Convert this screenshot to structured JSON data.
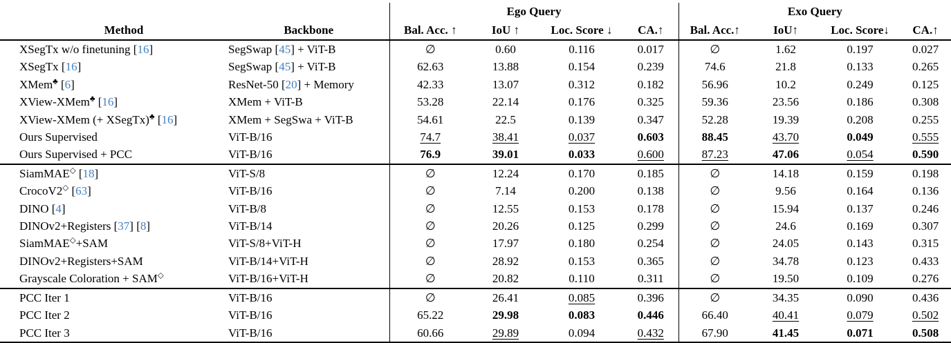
{
  "meta": {
    "background_color": "#ffffff",
    "text_color": "#000000",
    "citation_color": "#4181C2",
    "null_symbol": "∅"
  },
  "header": {
    "method": "Method",
    "backbone": "Backbone",
    "groups": [
      {
        "label": "Ego Query",
        "cols": [
          "Bal. Acc. ↑",
          "IoU ↑",
          "Loc. Score ↓",
          "CA.↑"
        ]
      },
      {
        "label": "Exo Query",
        "cols": [
          "Bal. Acc.↑",
          "IoU↑",
          "Loc. Score↓",
          "CA.↑"
        ]
      }
    ]
  },
  "sections": [
    {
      "name": "supervised-baselines",
      "rows": [
        {
          "method": [
            {
              "t": "XSegTx w/o finetuning "
            },
            {
              "t": "["
            },
            {
              "t": "16",
              "c": 1
            },
            {
              "t": "]"
            }
          ],
          "backbone": [
            {
              "t": "SegSwap "
            },
            {
              "t": "["
            },
            {
              "t": "45",
              "c": 1
            },
            {
              "t": "] + ViT-B"
            }
          ],
          "ego": [
            {
              "v": "∅"
            },
            {
              "v": "0.60"
            },
            {
              "v": "0.116"
            },
            {
              "v": "0.017"
            }
          ],
          "exo": [
            {
              "v": "∅"
            },
            {
              "v": "1.62"
            },
            {
              "v": "0.197"
            },
            {
              "v": "0.027"
            }
          ]
        },
        {
          "method": [
            {
              "t": "XSegTx "
            },
            {
              "t": "["
            },
            {
              "t": "16",
              "c": 1
            },
            {
              "t": "]"
            }
          ],
          "backbone": [
            {
              "t": "SegSwap "
            },
            {
              "t": "["
            },
            {
              "t": "45",
              "c": 1
            },
            {
              "t": "] + ViT-B"
            }
          ],
          "ego": [
            {
              "v": "62.63"
            },
            {
              "v": "13.88"
            },
            {
              "v": "0.154"
            },
            {
              "v": "0.239"
            }
          ],
          "exo": [
            {
              "v": "74.6"
            },
            {
              "v": "21.8"
            },
            {
              "v": "0.133"
            },
            {
              "v": "0.265"
            }
          ]
        },
        {
          "method": [
            {
              "t": "XMem"
            },
            {
              "t": "♣",
              "p": 1
            },
            {
              "t": " "
            },
            {
              "t": "["
            },
            {
              "t": "6",
              "c": 1
            },
            {
              "t": "]"
            }
          ],
          "backbone": [
            {
              "t": "ResNet-50 "
            },
            {
              "t": "["
            },
            {
              "t": "20",
              "c": 1
            },
            {
              "t": "] + Memory"
            }
          ],
          "ego": [
            {
              "v": "42.33"
            },
            {
              "v": "13.07"
            },
            {
              "v": "0.312"
            },
            {
              "v": "0.182"
            }
          ],
          "exo": [
            {
              "v": "56.96"
            },
            {
              "v": "10.2"
            },
            {
              "v": "0.249"
            },
            {
              "v": "0.125"
            }
          ]
        },
        {
          "method": [
            {
              "t": "XView-XMem"
            },
            {
              "t": "♣",
              "p": 1
            },
            {
              "t": " "
            },
            {
              "t": "["
            },
            {
              "t": "16",
              "c": 1
            },
            {
              "t": "]"
            }
          ],
          "backbone": [
            {
              "t": "XMem + ViT-B"
            }
          ],
          "ego": [
            {
              "v": "53.28"
            },
            {
              "v": "22.14"
            },
            {
              "v": "0.176"
            },
            {
              "v": "0.325"
            }
          ],
          "exo": [
            {
              "v": "59.36"
            },
            {
              "v": "23.56"
            },
            {
              "v": "0.186"
            },
            {
              "v": "0.308"
            }
          ]
        },
        {
          "method": [
            {
              "t": "XView-XMem (+ XSegTx)"
            },
            {
              "t": "♣",
              "p": 1
            },
            {
              "t": " "
            },
            {
              "t": "["
            },
            {
              "t": "16",
              "c": 1
            },
            {
              "t": "]"
            }
          ],
          "backbone": [
            {
              "t": "XMem + SegSwa + ViT-B"
            }
          ],
          "ego": [
            {
              "v": "54.61"
            },
            {
              "v": "22.5"
            },
            {
              "v": "0.139"
            },
            {
              "v": "0.347"
            }
          ],
          "exo": [
            {
              "v": "52.28"
            },
            {
              "v": "19.39"
            },
            {
              "v": "0.208"
            },
            {
              "v": "0.255"
            }
          ]
        },
        {
          "method": [
            {
              "t": "Ours Supervised"
            }
          ],
          "backbone": [
            {
              "t": "ViT-B/16"
            }
          ],
          "ego": [
            {
              "v": "74.7",
              "s": "u"
            },
            {
              "v": "38.41",
              "s": "u"
            },
            {
              "v": "0.037",
              "s": "u"
            },
            {
              "v": "0.603",
              "s": "b"
            }
          ],
          "exo": [
            {
              "v": "88.45",
              "s": "b"
            },
            {
              "v": "43.70",
              "s": "u"
            },
            {
              "v": "0.049",
              "s": "b"
            },
            {
              "v": "0.555",
              "s": "u"
            }
          ]
        },
        {
          "method": [
            {
              "t": "Ours Supervised + PCC"
            }
          ],
          "backbone": [
            {
              "t": "ViT-B/16"
            }
          ],
          "ego": [
            {
              "v": "76.9",
              "s": "b"
            },
            {
              "v": "39.01",
              "s": "b"
            },
            {
              "v": "0.033",
              "s": "b"
            },
            {
              "v": "0.600",
              "s": "u"
            }
          ],
          "exo": [
            {
              "v": "87.23",
              "s": "u"
            },
            {
              "v": "47.06",
              "s": "b"
            },
            {
              "v": "0.054",
              "s": "u"
            },
            {
              "v": "0.590",
              "s": "b"
            }
          ]
        }
      ]
    },
    {
      "name": "self-supervised-baselines",
      "rows": [
        {
          "method": [
            {
              "t": "SiamMAE"
            },
            {
              "t": "◇",
              "p": 1
            },
            {
              "t": " "
            },
            {
              "t": "["
            },
            {
              "t": "18",
              "c": 1
            },
            {
              "t": "]"
            }
          ],
          "backbone": [
            {
              "t": "ViT-S/8"
            }
          ],
          "ego": [
            {
              "v": "∅"
            },
            {
              "v": "12.24"
            },
            {
              "v": "0.170"
            },
            {
              "v": "0.185"
            }
          ],
          "exo": [
            {
              "v": "∅"
            },
            {
              "v": "14.18"
            },
            {
              "v": "0.159"
            },
            {
              "v": "0.198"
            }
          ]
        },
        {
          "method": [
            {
              "t": "CrocoV2"
            },
            {
              "t": "◇",
              "p": 1
            },
            {
              "t": " "
            },
            {
              "t": "["
            },
            {
              "t": "63",
              "c": 1
            },
            {
              "t": "]"
            }
          ],
          "backbone": [
            {
              "t": "ViT-B/16"
            }
          ],
          "ego": [
            {
              "v": "∅"
            },
            {
              "v": "7.14"
            },
            {
              "v": "0.200"
            },
            {
              "v": "0.138"
            }
          ],
          "exo": [
            {
              "v": "∅"
            },
            {
              "v": "9.56"
            },
            {
              "v": "0.164"
            },
            {
              "v": "0.136"
            }
          ]
        },
        {
          "method": [
            {
              "t": "DINO "
            },
            {
              "t": "["
            },
            {
              "t": "4",
              "c": 1
            },
            {
              "t": "]"
            }
          ],
          "backbone": [
            {
              "t": "ViT-B/8"
            }
          ],
          "ego": [
            {
              "v": "∅"
            },
            {
              "v": "12.55"
            },
            {
              "v": "0.153"
            },
            {
              "v": "0.178"
            }
          ],
          "exo": [
            {
              "v": "∅"
            },
            {
              "v": "15.94"
            },
            {
              "v": "0.137"
            },
            {
              "v": "0.246"
            }
          ]
        },
        {
          "method": [
            {
              "t": "DINOv2+Registers "
            },
            {
              "t": "["
            },
            {
              "t": "37",
              "c": 1
            },
            {
              "t": "] "
            },
            {
              "t": "["
            },
            {
              "t": "8",
              "c": 1
            },
            {
              "t": "]"
            }
          ],
          "backbone": [
            {
              "t": "ViT-B/14"
            }
          ],
          "ego": [
            {
              "v": "∅"
            },
            {
              "v": "20.26"
            },
            {
              "v": "0.125"
            },
            {
              "v": "0.299"
            }
          ],
          "exo": [
            {
              "v": "∅"
            },
            {
              "v": "24.6"
            },
            {
              "v": "0.169"
            },
            {
              "v": "0.307"
            }
          ]
        },
        {
          "method": [
            {
              "t": "SiamMAE"
            },
            {
              "t": "◇",
              "p": 1
            },
            {
              "t": "+SAM"
            }
          ],
          "backbone": [
            {
              "t": "ViT-S/8+ViT-H"
            }
          ],
          "ego": [
            {
              "v": "∅"
            },
            {
              "v": "17.97"
            },
            {
              "v": "0.180"
            },
            {
              "v": "0.254"
            }
          ],
          "exo": [
            {
              "v": "∅"
            },
            {
              "v": "24.05"
            },
            {
              "v": "0.143"
            },
            {
              "v": "0.315"
            }
          ]
        },
        {
          "method": [
            {
              "t": "DINOv2+Registers+SAM"
            }
          ],
          "backbone": [
            {
              "t": "ViT-B/14+ViT-H"
            }
          ],
          "ego": [
            {
              "v": "∅"
            },
            {
              "v": "28.92"
            },
            {
              "v": "0.153"
            },
            {
              "v": "0.365"
            }
          ],
          "exo": [
            {
              "v": "∅"
            },
            {
              "v": "34.78"
            },
            {
              "v": "0.123"
            },
            {
              "v": "0.433"
            }
          ]
        },
        {
          "method": [
            {
              "t": "Grayscale Coloration + SAM"
            },
            {
              "t": "◇",
              "p": 1
            }
          ],
          "backbone": [
            {
              "t": "ViT-B/16+ViT-H"
            }
          ],
          "ego": [
            {
              "v": "∅"
            },
            {
              "v": "20.82"
            },
            {
              "v": "0.110"
            },
            {
              "v": "0.311"
            }
          ],
          "exo": [
            {
              "v": "∅"
            },
            {
              "v": "19.50"
            },
            {
              "v": "0.109"
            },
            {
              "v": "0.276"
            }
          ]
        }
      ]
    },
    {
      "name": "pcc-iterations",
      "rows": [
        {
          "method": [
            {
              "t": "PCC Iter 1"
            }
          ],
          "backbone": [
            {
              "t": "ViT-B/16"
            }
          ],
          "ego": [
            {
              "v": "∅"
            },
            {
              "v": "26.41"
            },
            {
              "v": "0.085",
              "s": "u"
            },
            {
              "v": "0.396"
            }
          ],
          "exo": [
            {
              "v": "∅"
            },
            {
              "v": "34.35"
            },
            {
              "v": "0.090"
            },
            {
              "v": "0.436"
            }
          ]
        },
        {
          "method": [
            {
              "t": "PCC Iter 2"
            }
          ],
          "backbone": [
            {
              "t": "ViT-B/16"
            }
          ],
          "ego": [
            {
              "v": "65.22"
            },
            {
              "v": "29.98",
              "s": "b"
            },
            {
              "v": "0.083",
              "s": "b"
            },
            {
              "v": "0.446",
              "s": "b"
            }
          ],
          "exo": [
            {
              "v": "66.40"
            },
            {
              "v": "40.41",
              "s": "u"
            },
            {
              "v": "0.079",
              "s": "u"
            },
            {
              "v": "0.502",
              "s": "u"
            }
          ]
        },
        {
          "method": [
            {
              "t": "PCC Iter 3"
            }
          ],
          "backbone": [
            {
              "t": "ViT-B/16"
            }
          ],
          "ego": [
            {
              "v": "60.66"
            },
            {
              "v": "29.89",
              "s": "u"
            },
            {
              "v": "0.094"
            },
            {
              "v": "0.432",
              "s": "u"
            }
          ],
          "exo": [
            {
              "v": "67.90"
            },
            {
              "v": "41.45",
              "s": "b"
            },
            {
              "v": "0.071",
              "s": "b"
            },
            {
              "v": "0.508",
              "s": "b"
            }
          ]
        }
      ]
    }
  ]
}
